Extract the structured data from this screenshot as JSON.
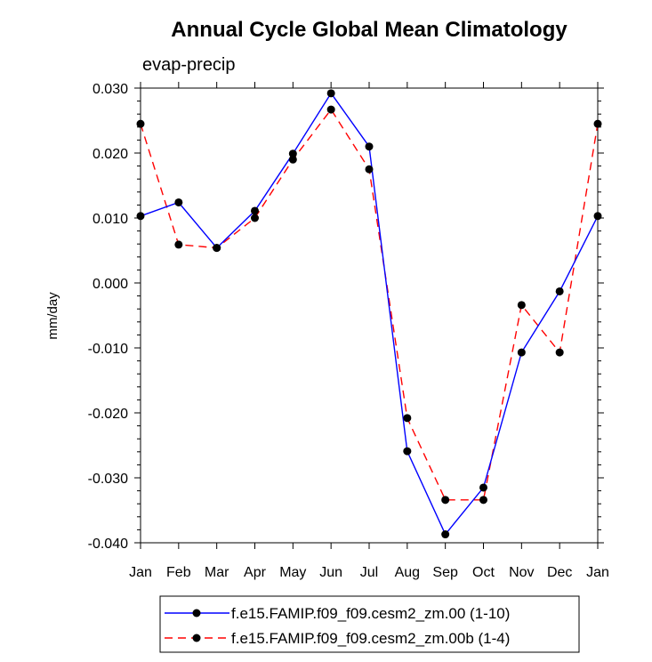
{
  "chart_data": {
    "type": "line",
    "title": "Annual Cycle Global Mean Climatology",
    "subtitle": "evap-precip",
    "xlabel": "",
    "ylabel": "mm/day",
    "categories": [
      "Jan",
      "Feb",
      "Mar",
      "Apr",
      "May",
      "Jun",
      "Jul",
      "Aug",
      "Sep",
      "Oct",
      "Nov",
      "Dec",
      "Jan"
    ],
    "ylim": [
      -0.04,
      0.03
    ],
    "yticks": [
      0.03,
      0.02,
      0.01,
      0.0,
      -0.01,
      -0.02,
      -0.03,
      -0.04
    ],
    "ytick_labels": [
      "0.030",
      "0.020",
      "0.010",
      "0.000",
      "-0.010",
      "-0.020",
      "-0.030",
      "-0.040"
    ],
    "legend_position": "bottom-center",
    "series": [
      {
        "name": "f.e15.FAMIP.f09_f09.cesm2_zm.00 (1-10)",
        "color": "#0000ff",
        "dash": "solid",
        "marker": "circle",
        "values": [
          0.0103,
          0.0124,
          0.0054,
          0.0111,
          0.0199,
          0.0292,
          0.021,
          -0.0259,
          -0.0387,
          -0.0315,
          -0.0107,
          -0.0013,
          0.0103
        ]
      },
      {
        "name": "f.e15.FAMIP.f09_f09.cesm2_zm.00b (1-4)",
        "color": "#ff0000",
        "dash": "dashed",
        "marker": "circle",
        "values": [
          0.0245,
          0.0059,
          0.0054,
          0.01,
          0.019,
          0.0267,
          0.0175,
          -0.0208,
          -0.0334,
          -0.0334,
          -0.0034,
          -0.0107,
          0.0245
        ]
      }
    ]
  }
}
